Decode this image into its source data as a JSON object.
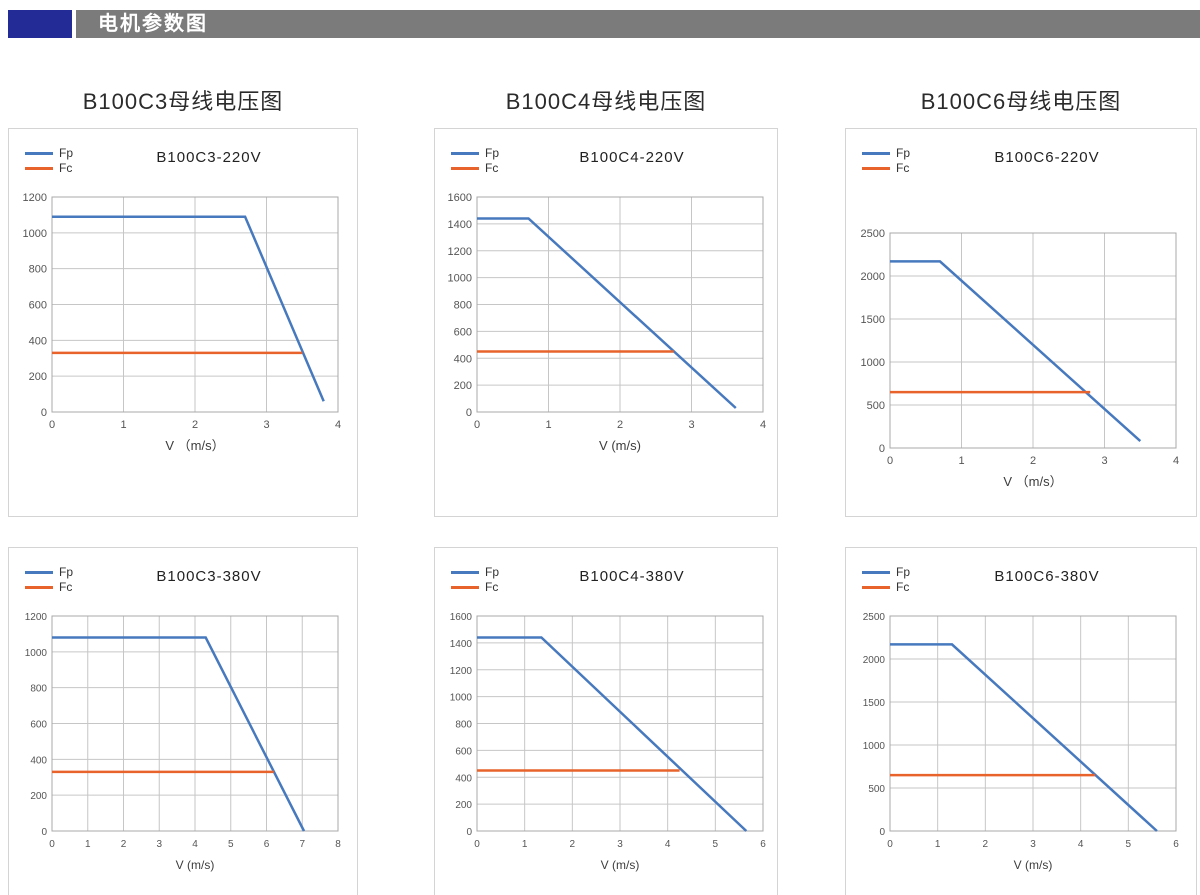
{
  "header": {
    "title": "电机参数图"
  },
  "columns": [
    {
      "title": "B100C3母线电压图"
    },
    {
      "title": "B100C4母线电压图"
    },
    {
      "title": "B100C6母线电压图"
    }
  ],
  "legend": {
    "fp": "Fp",
    "fc": "Fc"
  },
  "colors": {
    "fp": "#4779BE",
    "fc": "#E8632C",
    "grid": "#C6C6C6",
    "plot_border": "#A8A8A8",
    "header_block": "#232C96",
    "header_bar": "#7B7B7B"
  },
  "chart_data": [
    {
      "type": "line",
      "title": "B100C3-220V",
      "xlabel": "V （m/s）",
      "xlim": [
        0,
        4
      ],
      "xstep": 1,
      "ylim": [
        0,
        1200
      ],
      "ystep": 200,
      "series": [
        {
          "name": "Fp",
          "color": "#4779BE",
          "points": [
            [
              0,
              1090
            ],
            [
              2.7,
              1090
            ],
            [
              3.8,
              60
            ]
          ]
        },
        {
          "name": "Fc",
          "color": "#E8632C",
          "points": [
            [
              0,
              330
            ],
            [
              3.5,
              330
            ]
          ]
        }
      ]
    },
    {
      "type": "line",
      "title": "B100C4-220V",
      "xlabel": "V (m/s)",
      "xlim": [
        0,
        4
      ],
      "xstep": 1,
      "ylim": [
        0,
        1600
      ],
      "ystep": 200,
      "series": [
        {
          "name": "Fp",
          "color": "#4779BE",
          "points": [
            [
              0,
              1440
            ],
            [
              0.72,
              1440
            ],
            [
              3.62,
              30
            ]
          ]
        },
        {
          "name": "Fc",
          "color": "#E8632C",
          "points": [
            [
              0,
              450
            ],
            [
              2.75,
              450
            ]
          ]
        }
      ]
    },
    {
      "type": "line",
      "title": "B100C6-220V",
      "xlabel": "V （m/s）",
      "xlim": [
        0,
        4
      ],
      "xstep": 1,
      "ylim": [
        0,
        2500
      ],
      "ystep": 500,
      "series": [
        {
          "name": "Fp",
          "color": "#4779BE",
          "points": [
            [
              0,
              2170
            ],
            [
              0.7,
              2170
            ],
            [
              3.5,
              80
            ]
          ]
        },
        {
          "name": "Fc",
          "color": "#E8632C",
          "points": [
            [
              0,
              650
            ],
            [
              2.8,
              650
            ]
          ]
        }
      ]
    },
    {
      "type": "line",
      "title": "B100C3-380V",
      "xlabel": "V (m/s)",
      "xlim": [
        0,
        8
      ],
      "xstep": 1,
      "ylim": [
        0,
        1200
      ],
      "ystep": 200,
      "series": [
        {
          "name": "Fp",
          "color": "#4779BE",
          "points": [
            [
              0,
              1080
            ],
            [
              4.3,
              1080
            ],
            [
              7.05,
              0
            ]
          ]
        },
        {
          "name": "Fc",
          "color": "#E8632C",
          "points": [
            [
              0,
              330
            ],
            [
              6.2,
              330
            ]
          ]
        }
      ]
    },
    {
      "type": "line",
      "title": "B100C4-380V",
      "xlabel": "V (m/s)",
      "xlim": [
        0,
        6
      ],
      "xstep": 1,
      "ylim": [
        0,
        1600
      ],
      "ystep": 200,
      "series": [
        {
          "name": "Fp",
          "color": "#4779BE",
          "points": [
            [
              0,
              1440
            ],
            [
              1.35,
              1440
            ],
            [
              5.65,
              0
            ]
          ]
        },
        {
          "name": "Fc",
          "color": "#E8632C",
          "points": [
            [
              0,
              450
            ],
            [
              4.25,
              450
            ]
          ]
        }
      ]
    },
    {
      "type": "line",
      "title": "B100C6-380V",
      "xlabel": "V (m/s)",
      "xlim": [
        0,
        6
      ],
      "xstep": 1,
      "ylim": [
        0,
        2500
      ],
      "ystep": 500,
      "series": [
        {
          "name": "Fp",
          "color": "#4779BE",
          "points": [
            [
              0,
              2170
            ],
            [
              1.3,
              2170
            ],
            [
              5.6,
              0
            ]
          ]
        },
        {
          "name": "Fc",
          "color": "#E8632C",
          "points": [
            [
              0,
              650
            ],
            [
              4.3,
              650
            ]
          ]
        }
      ]
    }
  ]
}
